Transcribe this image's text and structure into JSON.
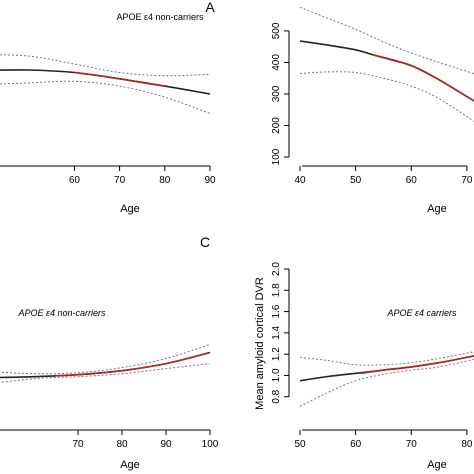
{
  "figure": {
    "colors": {
      "fit": "#222222",
      "highlight": "#b22222",
      "ci": "#888888",
      "axis": "#000000"
    }
  },
  "chart_data": [
    {
      "id": "top-left",
      "type": "line",
      "annotation": "APOE ε4 non-carriers",
      "annotation_italic": false,
      "panel_letter": "A",
      "xlabel": "Age",
      "ylabel": "",
      "xlim": [
        40,
        90
      ],
      "ylim": [
        100,
        560
      ],
      "xticks": [
        60,
        70,
        80,
        90
      ],
      "xtick_labels": [
        "60",
        "70",
        "80",
        "90"
      ],
      "yticks": [],
      "ytick_labels": [],
      "show_y_axis": false,
      "series": [
        {
          "role": "fit",
          "x": [
            40,
            50,
            60,
            70,
            80,
            90
          ],
          "y": [
            375,
            376,
            368,
            348,
            325,
            300
          ]
        },
        {
          "role": "highlight",
          "x": [
            60,
            65,
            70,
            75,
            80
          ],
          "y": [
            368,
            359,
            348,
            336,
            325
          ]
        },
        {
          "role": "ci_upper",
          "x": [
            40,
            50,
            60,
            70,
            80,
            90
          ],
          "y": [
            425,
            420,
            395,
            368,
            358,
            362
          ]
        },
        {
          "role": "ci_lower",
          "x": [
            40,
            50,
            60,
            70,
            80,
            90
          ],
          "y": [
            330,
            335,
            340,
            325,
            290,
            238
          ]
        }
      ]
    },
    {
      "id": "top-right",
      "type": "line",
      "annotation": "",
      "annotation_italic": false,
      "panel_letter": "",
      "xlabel": "Age",
      "ylabel": "",
      "xlim": [
        40,
        72
      ],
      "ylim": [
        100,
        560
      ],
      "xticks": [
        40,
        50,
        60,
        70
      ],
      "xtick_labels": [
        "40",
        "50",
        "60",
        "70"
      ],
      "yticks": [
        100,
        200,
        300,
        400,
        500
      ],
      "ytick_labels": [
        "100",
        "200",
        "300",
        "400",
        "500"
      ],
      "show_y_axis": true,
      "series": [
        {
          "role": "fit",
          "x": [
            40,
            45,
            50,
            53,
            60,
            65,
            72
          ],
          "y": [
            468,
            455,
            440,
            425,
            390,
            345,
            270
          ]
        },
        {
          "role": "highlight",
          "x": [
            53,
            57,
            60,
            65,
            72
          ],
          "y": [
            425,
            405,
            390,
            345,
            270
          ]
        },
        {
          "role": "ci_upper",
          "x": [
            40,
            45,
            50,
            55,
            60,
            65,
            72
          ],
          "y": [
            575,
            540,
            505,
            465,
            430,
            400,
            360
          ]
        },
        {
          "role": "ci_lower",
          "x": [
            40,
            45,
            50,
            55,
            60,
            65,
            72
          ],
          "y": [
            365,
            370,
            368,
            350,
            325,
            285,
            205
          ]
        }
      ]
    },
    {
      "id": "bottom-left",
      "type": "line",
      "annotation": "APOE ε4 non-carriers",
      "annotation_italic": true,
      "panel_letter": "C",
      "xlabel": "Age",
      "ylabel": "",
      "xlim": [
        50,
        100
      ],
      "ylim": [
        0.6,
        2.0
      ],
      "xticks": [
        70,
        80,
        90,
        100
      ],
      "xtick_labels": [
        "70",
        "80",
        "90",
        "100"
      ],
      "yticks": [],
      "ytick_labels": [],
      "show_y_axis": false,
      "series": [
        {
          "role": "fit",
          "x": [
            50,
            60,
            70,
            80,
            90,
            100
          ],
          "y": [
            1.0,
            1.01,
            1.03,
            1.07,
            1.14,
            1.25
          ]
        },
        {
          "role": "highlight",
          "x": [
            65,
            70,
            80,
            90,
            100
          ],
          "y": [
            1.02,
            1.03,
            1.07,
            1.14,
            1.25
          ]
        },
        {
          "role": "ci_upper",
          "x": [
            50,
            60,
            70,
            80,
            90,
            100
          ],
          "y": [
            1.06,
            1.04,
            1.05,
            1.1,
            1.19,
            1.33
          ]
        },
        {
          "role": "ci_lower",
          "x": [
            50,
            60,
            70,
            80,
            90,
            100
          ],
          "y": [
            0.94,
            0.99,
            1.01,
            1.04,
            1.09,
            1.14
          ]
        }
      ]
    },
    {
      "id": "bottom-right",
      "type": "line",
      "annotation": "APOE ε4 carriers",
      "annotation_italic": true,
      "panel_letter": "",
      "xlabel": "Age",
      "ylabel": "Mean amyloid cortical DVR",
      "xlim": [
        50,
        82
      ],
      "ylim": [
        0.6,
        2.0
      ],
      "xticks": [
        50,
        60,
        70,
        80
      ],
      "xtick_labels": [
        "50",
        "60",
        "70",
        "80"
      ],
      "yticks": [
        0.8,
        1.0,
        1.2,
        1.4,
        1.6,
        1.8,
        2.0
      ],
      "ytick_labels": [
        "0.8",
        "1.0",
        "1.2",
        "1.4",
        "1.6",
        "1.8",
        "2.0"
      ],
      "show_y_axis": true,
      "series": [
        {
          "role": "fit",
          "x": [
            50,
            55,
            60,
            65,
            70,
            75,
            82
          ],
          "y": [
            0.95,
            0.99,
            1.02,
            1.05,
            1.08,
            1.12,
            1.19
          ]
        },
        {
          "role": "highlight",
          "x": [
            61,
            65,
            70,
            75,
            82
          ],
          "y": [
            1.02,
            1.05,
            1.08,
            1.12,
            1.19
          ]
        },
        {
          "role": "ci_upper",
          "x": [
            50,
            55,
            60,
            65,
            70,
            75,
            82
          ],
          "y": [
            1.17,
            1.14,
            1.1,
            1.1,
            1.12,
            1.16,
            1.23
          ]
        },
        {
          "role": "ci_lower",
          "x": [
            50,
            55,
            60,
            65,
            70,
            75,
            82
          ],
          "y": [
            0.71,
            0.84,
            0.95,
            1.01,
            1.05,
            1.08,
            1.16
          ]
        }
      ]
    }
  ]
}
